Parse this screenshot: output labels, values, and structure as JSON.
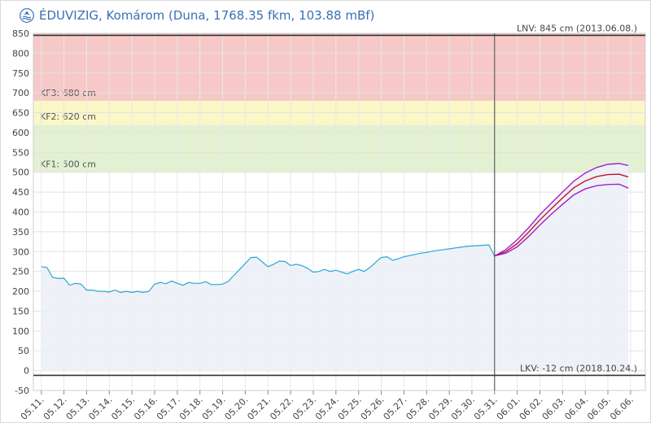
{
  "header": {
    "title": "ÉDUVIZIG, Komárom (Duna, 1768.35 fkm, 103.88 mBf)",
    "logo_icon": "eduvizig-logo-icon"
  },
  "chart_data": {
    "type": "line",
    "title": "ÉDUVIZIG, Komárom (Duna, 1768.35 fkm, 103.88 mBf)",
    "ylim": [
      -50,
      850
    ],
    "y_ticks": [
      -50,
      0,
      50,
      100,
      150,
      200,
      250,
      300,
      350,
      400,
      450,
      500,
      550,
      600,
      650,
      700,
      750,
      800,
      850
    ],
    "x_tick_labels": [
      "05.11.",
      "05.12.",
      "05.13.",
      "05.14.",
      "05.15.",
      "05.16.",
      "05.17.",
      "05.18.",
      "05.19.",
      "05.20.",
      "05.21.",
      "05.22.",
      "05.23.",
      "05.24.",
      "05.25.",
      "05.26.",
      "05.27.",
      "05.28.",
      "05.29.",
      "05.30.",
      "05.31.",
      "06.01.",
      "06.02.",
      "06.03.",
      "06.04.",
      "06.05.",
      "06.06."
    ],
    "grid": true,
    "forecast_start_day": 20,
    "zones": [
      {
        "label": "KF1: 500 cm",
        "from": 500,
        "to": 620,
        "color": "#e3f1d3"
      },
      {
        "label": "KF2: 620 cm",
        "from": 620,
        "to": 680,
        "color": "#fbf7c6"
      },
      {
        "label": "KF3: 680 cm",
        "from": 680,
        "to": 850,
        "color": "#f7c8c8"
      }
    ],
    "reference_lines": [
      {
        "label": "LNV: 845 cm (2013.06.08.)",
        "value": 845
      },
      {
        "label": "LKV: -12 cm (2018.10.24.)",
        "value": -12
      }
    ],
    "series": [
      {
        "role": "observed",
        "color": "#26a8d8",
        "area_color": "#edf0f7",
        "x": [
          0,
          0.25,
          0.5,
          0.75,
          1,
          1.25,
          1.5,
          1.75,
          2,
          2.25,
          2.5,
          2.75,
          3,
          3.25,
          3.5,
          3.75,
          4,
          4.25,
          4.5,
          4.75,
          5,
          5.25,
          5.5,
          5.75,
          6,
          6.25,
          6.5,
          6.75,
          7,
          7.25,
          7.5,
          7.75,
          8,
          8.25,
          8.5,
          8.75,
          9,
          9.25,
          9.5,
          9.75,
          10,
          10.25,
          10.5,
          10.75,
          11,
          11.25,
          11.5,
          11.75,
          12,
          12.25,
          12.5,
          12.75,
          13,
          13.25,
          13.5,
          13.75,
          14,
          14.25,
          14.5,
          14.75,
          15,
          15.25,
          15.5,
          15.75,
          16,
          16.25,
          16.5,
          16.75,
          17,
          17.25,
          17.5,
          17.75,
          18,
          18.25,
          18.5,
          18.75,
          19,
          19.25,
          19.5,
          19.75,
          20
        ],
        "y": [
          262,
          260,
          235,
          232,
          233,
          215,
          220,
          218,
          203,
          203,
          200,
          200,
          198,
          203,
          197,
          200,
          197,
          200,
          197,
          200,
          218,
          222,
          219,
          226,
          220,
          215,
          222,
          220,
          220,
          224,
          217,
          217,
          218,
          225,
          240,
          255,
          270,
          285,
          286,
          274,
          262,
          268,
          276,
          275,
          265,
          268,
          265,
          258,
          248,
          250,
          255,
          250,
          253,
          248,
          244,
          250,
          255,
          250,
          260,
          273,
          285,
          287,
          278,
          282,
          287,
          290,
          293,
          296,
          298,
          301,
          303,
          305,
          307,
          309,
          311,
          313,
          314,
          315,
          316,
          317,
          288
        ]
      },
      {
        "role": "forecast-upper",
        "color": "#a020d0",
        "x": [
          20,
          20.5,
          21,
          21.5,
          22,
          22.5,
          23,
          23.5,
          24,
          24.5,
          25,
          25.5,
          25.9
        ],
        "y": [
          289,
          305,
          330,
          360,
          393,
          422,
          450,
          478,
          498,
          512,
          520,
          522,
          517
        ]
      },
      {
        "role": "forecast-main",
        "color": "#c0142a",
        "x": [
          20,
          20.5,
          21,
          21.5,
          22,
          22.5,
          23,
          23.5,
          24,
          24.5,
          25,
          25.5,
          25.9
        ],
        "y": [
          289,
          300,
          320,
          349,
          380,
          408,
          435,
          461,
          478,
          489,
          494,
          495,
          488
        ]
      },
      {
        "role": "forecast-lower",
        "color": "#a020d0",
        "x": [
          20,
          20.5,
          21,
          21.5,
          22,
          22.5,
          23,
          23.5,
          24,
          24.5,
          25,
          25.5,
          25.9
        ],
        "y": [
          289,
          296,
          312,
          338,
          367,
          394,
          419,
          443,
          458,
          466,
          469,
          470,
          460
        ]
      }
    ]
  }
}
